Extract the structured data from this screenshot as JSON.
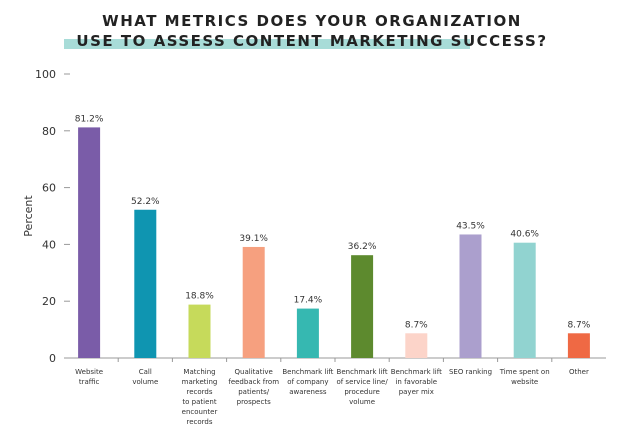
{
  "chart_data": {
    "type": "bar",
    "title": [
      "WHAT METRICS DOES YOUR ORGANIZATION",
      "USE TO ASSESS CONTENT MARKETING SUCCESS?"
    ],
    "ylabel": "Percent",
    "xlabel": "",
    "ylim": [
      0,
      100
    ],
    "yticks": [
      0,
      20,
      40,
      60,
      80,
      100
    ],
    "grid": false,
    "categories": [
      [
        "Website",
        "traffic"
      ],
      [
        "Call",
        "volume"
      ],
      [
        "Matching",
        "marketing",
        "records",
        "to patient",
        "encounter",
        "records"
      ],
      [
        "Qualitative",
        "feedback from",
        "patients/",
        "prospects"
      ],
      [
        "Benchmark lift",
        "of company",
        "awareness"
      ],
      [
        "Benchmark lift",
        "of service line/",
        "procedure",
        "volume"
      ],
      [
        "Benchmark lift",
        "in favorable",
        "payer mix"
      ],
      [
        "SEO ranking"
      ],
      [
        "Time spent on",
        "website"
      ],
      [
        "Other"
      ]
    ],
    "values": [
      81.2,
      52.2,
      18.8,
      39.1,
      17.4,
      36.2,
      8.7,
      43.5,
      40.6,
      8.7
    ],
    "labels": [
      "81.2%",
      "52.2%",
      "18.8%",
      "39.1%",
      "17.4%",
      "36.2%",
      "8.7%",
      "43.5%",
      "40.6%",
      "8.7%"
    ],
    "colors": [
      "#7a5ca8",
      "#0f95b1",
      "#c6da5b",
      "#f6a07f",
      "#36b8b1",
      "#5d8a2e",
      "#fcd4c9",
      "#ab9fcd",
      "#91d3d0",
      "#ef6944"
    ]
  }
}
